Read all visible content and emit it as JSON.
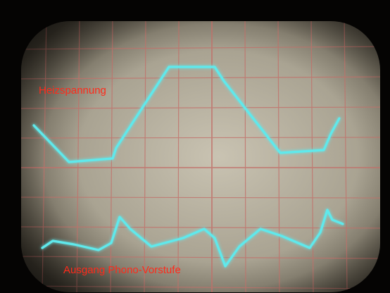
{
  "labels": {
    "top_trace": "Heizspannung",
    "bottom_trace": "Ausgang Phono-Vorstufe"
  }
}
